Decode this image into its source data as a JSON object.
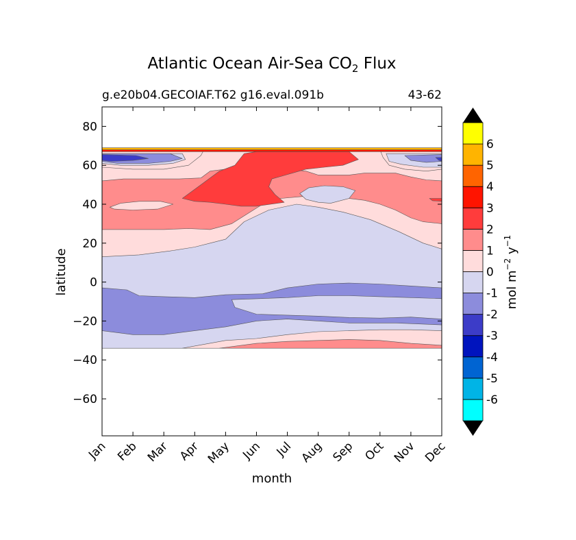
{
  "chart_data": {
    "type": "heatmap",
    "title_main": "Atlantic Ocean Air-Sea CO",
    "title_sub": "2",
    "title_end": " Flux",
    "subtitle_left": "g.e20b04.GECOIAF.T62 g16.eval.091b",
    "subtitle_right": "43-62",
    "xlabel": "month",
    "ylabel": "latitude",
    "x_categories": [
      "Jan",
      "Feb",
      "Mar",
      "Apr",
      "May",
      "Jun",
      "Jul",
      "Aug",
      "Sep",
      "Oct",
      "Nov",
      "Dec"
    ],
    "y_ticks": [
      "80",
      "60",
      "40",
      "20",
      "0",
      "−20",
      "−40",
      "−60"
    ],
    "y_tick_values": [
      80,
      60,
      40,
      20,
      0,
      -20,
      -40,
      -60
    ],
    "ylim": [
      -79,
      90
    ],
    "data_lat_range": [
      -34,
      68
    ],
    "colorbar": {
      "label_main": "mol m",
      "label_exp1": "−2",
      "label_mid": "  y",
      "label_exp2": "−1",
      "levels": [
        -7,
        -6,
        -5,
        -4,
        -3,
        -2,
        -1,
        0,
        1,
        2,
        3,
        4,
        5,
        6,
        7
      ],
      "tick_labels": [
        "-6",
        "-5",
        "-4",
        "-3",
        "-2",
        "-1",
        "0",
        "1",
        "2",
        "3",
        "4",
        "5",
        "6"
      ],
      "tick_values": [
        -6,
        -5,
        -4,
        -3,
        -2,
        -1,
        0,
        1,
        2,
        3,
        4,
        5,
        6
      ],
      "colors": [
        "#00ffff",
        "#00b4e6",
        "#0064d2",
        "#0014be",
        "#3c3cc8",
        "#8c8cdc",
        "#d6d6f0",
        "#ffdcdc",
        "#ff8c8c",
        "#ff3c3c",
        "#ff1400",
        "#ff6400",
        "#ffb400",
        "#ffff00"
      ],
      "extend_color": "#000000"
    },
    "regions": [
      {
        "value": -0.5,
        "desc": "background",
        "points": [
          [
            0,
            68
          ],
          [
            11,
            68
          ],
          [
            11,
            -34
          ],
          [
            0,
            -34
          ]
        ]
      },
      {
        "value": 0.5,
        "points": [
          [
            0,
            68
          ],
          [
            11,
            68
          ],
          [
            11,
            17
          ],
          [
            10.4,
            20
          ],
          [
            9.6,
            26
          ],
          [
            8.7,
            32
          ],
          [
            7.8,
            36
          ],
          [
            7,
            38.5
          ],
          [
            6.3,
            40
          ],
          [
            5.4,
            37
          ],
          [
            4.6,
            31
          ],
          [
            4,
            22
          ],
          [
            3.5,
            20
          ],
          [
            3,
            18
          ],
          [
            2.2,
            16
          ],
          [
            1.2,
            14
          ],
          [
            0,
            13
          ]
        ]
      },
      {
        "value": 1.5,
        "points": [
          [
            0,
            68
          ],
          [
            11,
            68
          ],
          [
            11,
            30
          ],
          [
            10.4,
            31
          ],
          [
            10,
            33
          ],
          [
            9.5,
            37
          ],
          [
            9,
            40
          ],
          [
            8.5,
            42
          ],
          [
            7.5,
            44
          ],
          [
            6.5,
            44
          ],
          [
            5.8,
            43
          ],
          [
            5.2,
            40
          ],
          [
            4.8,
            36
          ],
          [
            4.2,
            30
          ],
          [
            3.5,
            27
          ],
          [
            2.8,
            27.5
          ],
          [
            2,
            27
          ],
          [
            1,
            27
          ],
          [
            0,
            27
          ]
        ]
      },
      {
        "value": 0.5,
        "points": [
          [
            0.25,
            38.5
          ],
          [
            0.6,
            40.5
          ],
          [
            1.2,
            41.5
          ],
          [
            1.9,
            41.5
          ],
          [
            2.3,
            40
          ],
          [
            1.8,
            37.5
          ],
          [
            1.0,
            37
          ],
          [
            0.4,
            37.5
          ]
        ]
      },
      {
        "value": 0.5,
        "points": [
          [
            0,
            68
          ],
          [
            11,
            68
          ],
          [
            11,
            52
          ],
          [
            10.5,
            52.5
          ],
          [
            10,
            54
          ],
          [
            9.5,
            56
          ],
          [
            8.5,
            56
          ],
          [
            8,
            55
          ],
          [
            7,
            55
          ],
          [
            6.6,
            57
          ],
          [
            6,
            58
          ],
          [
            5.5,
            59
          ],
          [
            4.5,
            59
          ],
          [
            3.5,
            57
          ],
          [
            3.2,
            53.5
          ],
          [
            2.5,
            53
          ],
          [
            1.5,
            53
          ],
          [
            0.7,
            53
          ],
          [
            0,
            52
          ]
        ]
      },
      {
        "value": 2.5,
        "points": [
          [
            2.6,
            43
          ],
          [
            3.2,
            50
          ],
          [
            3.8,
            57
          ],
          [
            4.3,
            60
          ],
          [
            4.6,
            66
          ],
          [
            5,
            67
          ],
          [
            8,
            67
          ],
          [
            8.3,
            63
          ],
          [
            7.8,
            60
          ],
          [
            7.2,
            59
          ],
          [
            6.6,
            58
          ],
          [
            5.9,
            54.8
          ],
          [
            5.5,
            53
          ],
          [
            5.4,
            49
          ],
          [
            5.6,
            45
          ],
          [
            5.9,
            41
          ],
          [
            5,
            39
          ],
          [
            4.5,
            39
          ],
          [
            4,
            40
          ],
          [
            3.5,
            41
          ],
          [
            3,
            41.5
          ]
        ]
      },
      {
        "value": -0.5,
        "points": [
          [
            6.4,
            45.5
          ],
          [
            6.7,
            48.5
          ],
          [
            7.2,
            49.5
          ],
          [
            7.8,
            49
          ],
          [
            8.2,
            47
          ],
          [
            8,
            43
          ],
          [
            7.4,
            40.5
          ],
          [
            7,
            41
          ],
          [
            6.6,
            42.5
          ]
        ]
      },
      {
        "value": 2.5,
        "points": [
          [
            10.6,
            43
          ],
          [
            11,
            43
          ],
          [
            11,
            41.5
          ],
          [
            10.7,
            41.8
          ]
        ]
      },
      {
        "value": 0.5,
        "points": [
          [
            0,
            68
          ],
          [
            3.3,
            68
          ],
          [
            3.2,
            65
          ],
          [
            2.8,
            60
          ],
          [
            2,
            58
          ],
          [
            1,
            58
          ],
          [
            0,
            59
          ]
        ]
      },
      {
        "value": -0.5,
        "points": [
          [
            0,
            66
          ],
          [
            2.6,
            66
          ],
          [
            2.7,
            63
          ],
          [
            2.3,
            61
          ],
          [
            1.5,
            60
          ],
          [
            0.6,
            60
          ],
          [
            0,
            61
          ]
        ]
      },
      {
        "value": -1.5,
        "points": [
          [
            0,
            66
          ],
          [
            2.2,
            66
          ],
          [
            2.6,
            63.5
          ],
          [
            2.2,
            62
          ],
          [
            1.5,
            61
          ],
          [
            0.5,
            61
          ],
          [
            0,
            62
          ]
        ]
      },
      {
        "value": -2.5,
        "points": [
          [
            0,
            65.5
          ],
          [
            1.1,
            65
          ],
          [
            1.5,
            63.5
          ],
          [
            1.0,
            62.5
          ],
          [
            0.3,
            62
          ],
          [
            0,
            62.5
          ]
        ]
      },
      {
        "value": 0.5,
        "points": [
          [
            9.0,
            68
          ],
          [
            11,
            68
          ],
          [
            11,
            58
          ],
          [
            10.5,
            57
          ],
          [
            9.8,
            58
          ],
          [
            9.3,
            60
          ],
          [
            9.1,
            64
          ]
        ]
      },
      {
        "value": -0.5,
        "points": [
          [
            9.2,
            66
          ],
          [
            11,
            66
          ],
          [
            11,
            59
          ],
          [
            10.4,
            59
          ],
          [
            9.7,
            60.5
          ],
          [
            9.3,
            62
          ]
        ]
      },
      {
        "value": -1.5,
        "points": [
          [
            9.8,
            65
          ],
          [
            11,
            65.5
          ],
          [
            11,
            62
          ],
          [
            10.5,
            61.5
          ],
          [
            10,
            62.5
          ]
        ]
      },
      {
        "value": -2.5,
        "points": [
          [
            10.8,
            64
          ],
          [
            11,
            64
          ],
          [
            11,
            62
          ],
          [
            10.9,
            62.6
          ]
        ]
      },
      {
        "value": 3.5,
        "points": [
          [
            0,
            68
          ],
          [
            11,
            68
          ],
          [
            11,
            67
          ],
          [
            0,
            67
          ]
        ]
      },
      {
        "value": 5.5,
        "points": [
          [
            0,
            69
          ],
          [
            11,
            69
          ],
          [
            11,
            68
          ],
          [
            0,
            68
          ]
        ]
      },
      {
        "value": -1.5,
        "points": [
          [
            0,
            -3
          ],
          [
            0.8,
            -4
          ],
          [
            1.2,
            -7
          ],
          [
            2,
            -7.5
          ],
          [
            3,
            -8
          ],
          [
            4,
            -6.5
          ],
          [
            5.2,
            -6
          ],
          [
            6,
            -3
          ],
          [
            7,
            -1
          ],
          [
            8,
            -0.5
          ],
          [
            9,
            -1
          ],
          [
            10,
            -2
          ],
          [
            11,
            -3
          ],
          [
            11,
            -22
          ],
          [
            9.5,
            -21
          ],
          [
            8,
            -21
          ],
          [
            7,
            -20
          ],
          [
            6,
            -19
          ],
          [
            5,
            -20
          ],
          [
            4,
            -23
          ],
          [
            3,
            -25
          ],
          [
            2,
            -27
          ],
          [
            1,
            -27
          ],
          [
            0,
            -25
          ]
        ]
      },
      {
        "value": -0.5,
        "points": [
          [
            4.2,
            -9
          ],
          [
            6,
            -8
          ],
          [
            7,
            -7
          ],
          [
            8,
            -7
          ],
          [
            9,
            -7.5
          ],
          [
            10,
            -8
          ],
          [
            11,
            -8.5
          ],
          [
            11,
            -19
          ],
          [
            10,
            -18
          ],
          [
            9,
            -18.5
          ],
          [
            8,
            -18.2
          ],
          [
            7,
            -17.5
          ],
          [
            6,
            -17
          ],
          [
            5,
            -16.5
          ],
          [
            4.3,
            -13
          ]
        ]
      },
      {
        "value": 0.5,
        "points": [
          [
            2.6,
            -34
          ],
          [
            4,
            -30
          ],
          [
            5,
            -29
          ],
          [
            6,
            -27
          ],
          [
            7,
            -25.5
          ],
          [
            8,
            -25
          ],
          [
            9,
            -24.5
          ],
          [
            10,
            -24.5
          ],
          [
            11,
            -25
          ],
          [
            11,
            -34
          ]
        ]
      },
      {
        "value": 1.5,
        "points": [
          [
            3.8,
            -34
          ],
          [
            5,
            -31.5
          ],
          [
            6,
            -30.5
          ],
          [
            7,
            -30
          ],
          [
            8,
            -29.5
          ],
          [
            9,
            -30
          ],
          [
            10,
            -31.5
          ],
          [
            11,
            -32.5
          ],
          [
            11,
            -34
          ]
        ]
      }
    ]
  }
}
